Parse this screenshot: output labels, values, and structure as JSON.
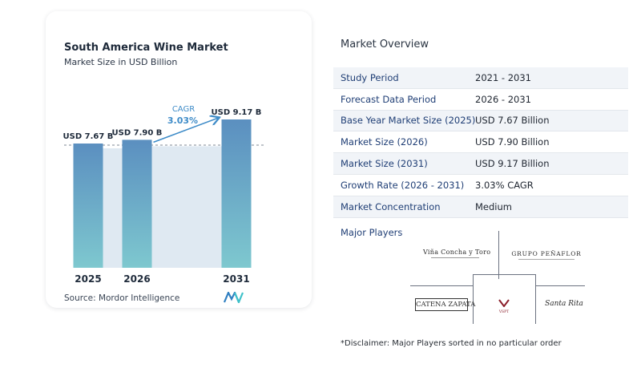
{
  "chart": {
    "title": "South America Wine Market",
    "subtitle": "Market Size in USD Billion",
    "source": "Source:  Mordor Intelligence",
    "cagr_label": "CAGR",
    "cagr_value": "3.03%",
    "colors": {
      "bar_top": "#5b8fc0",
      "bar_bottom": "#7ec8cf",
      "band": "#dfe9f2",
      "accent": "#3f8cc8",
      "dashed": "#7f8a96"
    }
  },
  "chart_data": {
    "type": "bar",
    "title": "South America Wine Market",
    "subtitle": "Market Size in USD Billion",
    "categories": [
      "2025",
      "2026",
      "2031"
    ],
    "values": [
      7.67,
      7.9,
      9.17
    ],
    "data_labels": [
      "USD 7.67 B",
      "USD 7.90 B",
      "USD 9.17 B"
    ],
    "annotations": [
      {
        "text": "CAGR 3.03%",
        "from": "2026",
        "to": "2031"
      }
    ],
    "grid": false,
    "legend": "none"
  },
  "overview": {
    "title": "Market Overview",
    "rows": [
      {
        "label": "Study Period",
        "value": "2021 - 2031"
      },
      {
        "label": "Forecast Data Period",
        "value": "2026 - 2031"
      },
      {
        "label": "Base Year Market Size (2025)",
        "value": "USD 7.67 Billion"
      },
      {
        "label": "Market Size (2026)",
        "value": "USD 7.90 Billion"
      },
      {
        "label": "Market Size (2031)",
        "value": "USD 9.17 Billion"
      },
      {
        "label": "Growth Rate (2026 - 2031)",
        "value": "3.03% CAGR"
      },
      {
        "label": "Market Concentration",
        "value": "Medium"
      }
    ]
  },
  "players": {
    "title": "Major Players",
    "logos": {
      "concha": "Viña Concha y Toro",
      "penaflor": "Grupo Peñaflor",
      "catena": "Catena Zapata",
      "vsp": "VSPT",
      "santa_rita": "Santa Rita"
    }
  },
  "disclaimer": "*Disclaimer: Major Players sorted in no particular order"
}
